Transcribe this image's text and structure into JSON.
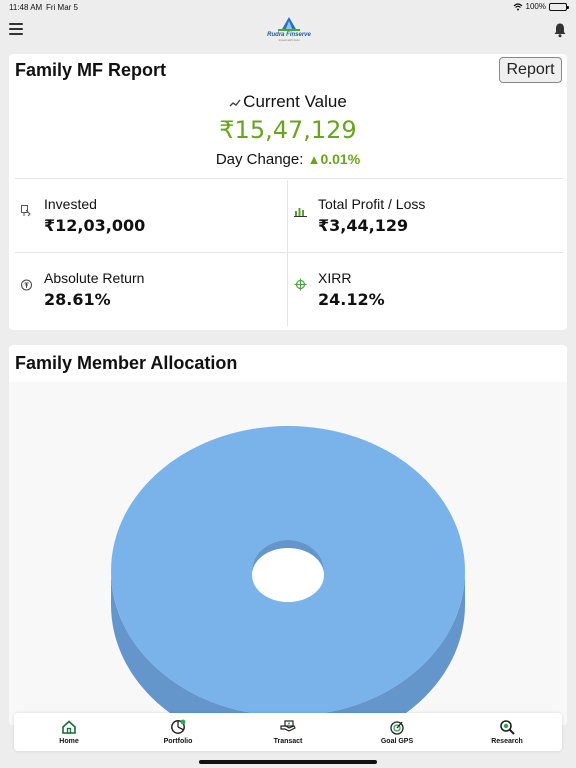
{
  "status_bar": {
    "time": "11:48 AM",
    "date": "Fri Mar 5",
    "battery": "100%"
  },
  "header": {
    "logo_text": "Rudra Finserve",
    "logo_tagline": "Invest with trust"
  },
  "report_card": {
    "title": "Family MF Report",
    "report_button": "Report",
    "current_value_label": "Current Value",
    "current_value": "₹15,47,129",
    "day_change_label": "Day Change:",
    "day_change_value": "0.01%",
    "stats": {
      "invested": {
        "label": "Invested",
        "value": "₹12,03,000"
      },
      "profit_loss": {
        "label": "Total Profit / Loss",
        "value": "₹3,44,129"
      },
      "absolute_return": {
        "label": "Absolute Return",
        "value": "28.61%"
      },
      "xirr": {
        "label": "XIRR",
        "value": "24.12%"
      }
    }
  },
  "allocation_card": {
    "title": "Family Member Allocation"
  },
  "chart_data": {
    "type": "pie",
    "title": "Family Member Allocation",
    "categories": [
      ""
    ],
    "values": [
      100
    ],
    "colors": [
      "#7ab3ea"
    ],
    "style": "3d-donut"
  },
  "bottom_nav": [
    {
      "label": "Home",
      "icon": "home-icon"
    },
    {
      "label": "Portfolio",
      "icon": "pie-chart-icon"
    },
    {
      "label": "Transact",
      "icon": "hand-money-icon"
    },
    {
      "label": "Goal GPS",
      "icon": "target-icon"
    },
    {
      "label": "Research",
      "icon": "magnifier-icon"
    }
  ],
  "colors": {
    "accent_green": "#6aa31f",
    "pie_blue": "#7ab3ea",
    "pie_side": "#6496cc"
  }
}
